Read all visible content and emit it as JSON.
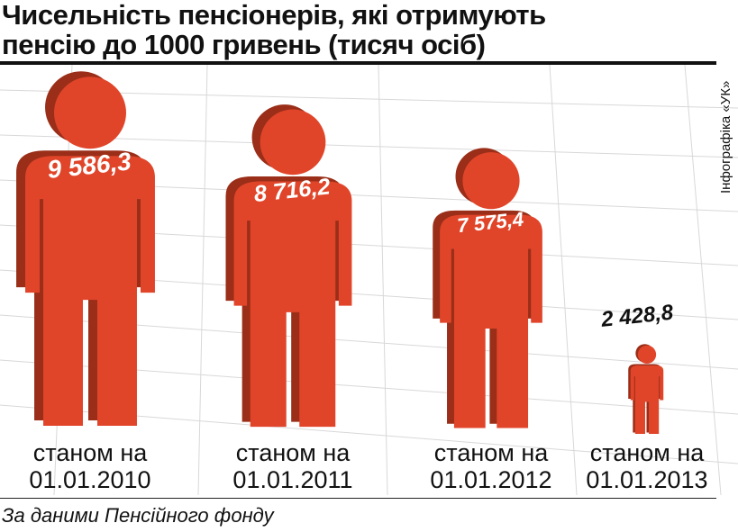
{
  "chart_data": {
    "type": "pictogram",
    "title": "Чисельність пенсіонерів, які отримують пенсію до 1000 гривень (тисяч осіб)",
    "categories": [
      "станом на 01.01.2010",
      "станом на 01.01.2011",
      "станом на 01.01.2012",
      "станом на 01.01.2013"
    ],
    "values": [
      9586.3,
      8716.2,
      7575.4,
      2428.8
    ],
    "value_labels": [
      "9 586,3",
      "8 716,2",
      "7 575,4",
      "2 428,8"
    ],
    "color": "#e0452a",
    "source": "За даними Пенсійного фонду",
    "credit": "Інфографіка «УК»"
  }
}
